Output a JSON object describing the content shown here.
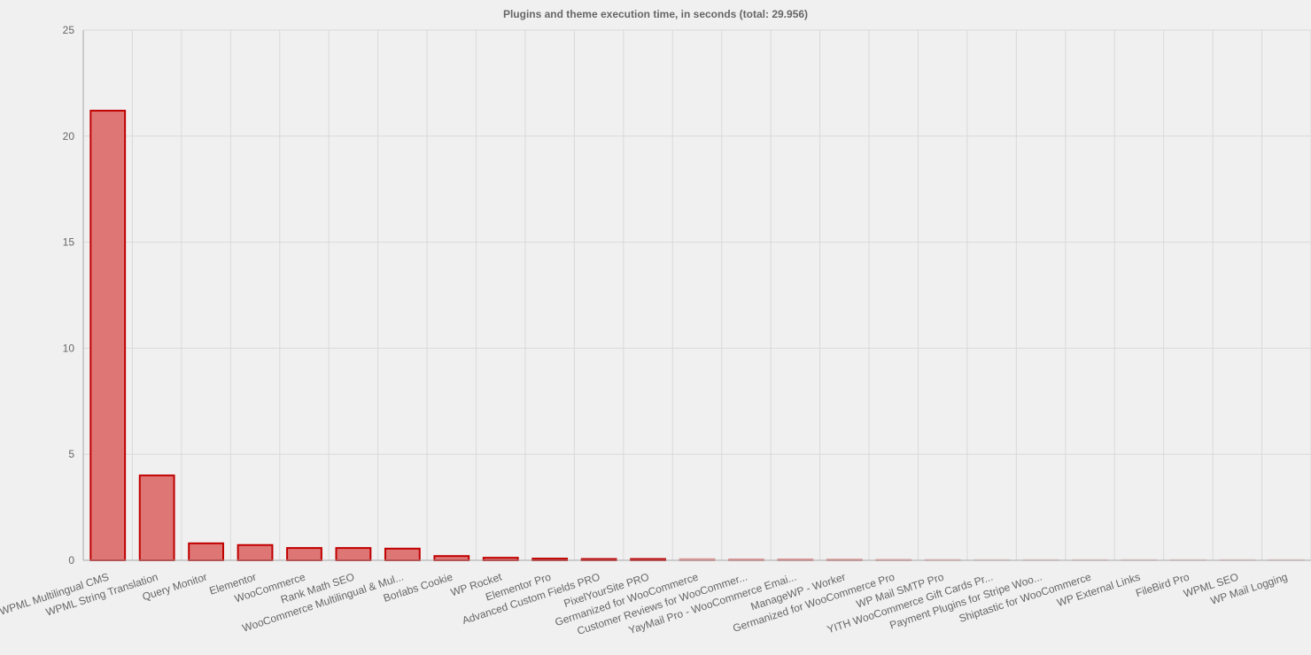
{
  "chart_data": {
    "type": "bar",
    "title": "Plugins and theme execution time, in seconds (total: 29.956)",
    "xlabel": "",
    "ylabel": "",
    "ylim": [
      0,
      25
    ],
    "yticks": [
      0,
      5,
      10,
      15,
      20,
      25
    ],
    "grid": true,
    "legend": "none",
    "colors": {
      "fill": "#df7676",
      "stroke": "#c10000",
      "grid": "#d9d9d9",
      "axis": "#a8a8a8",
      "text": "#666666"
    },
    "categories": [
      "WPML Multilingual CMS",
      "WPML String Translation",
      "Query Monitor",
      "Elementor",
      "WooCommerce",
      "Rank Math SEO",
      "WooCommerce Multilingual & Mul...",
      "Borlabs Cookie",
      "WP Rocket",
      "Elementor Pro",
      "Advanced Custom Fields PRO",
      "PixelYourSite PRO",
      "Germanized for WooCommerce",
      "Customer Reviews for WooCommer...",
      "YayMail Pro - WooCommerce Emai...",
      "ManageWP - Worker",
      "Germanized for WooCommerce Pro",
      "WP Mail SMTP Pro",
      "YITH WooCommerce Gift Cards Pr...",
      "Payment Plugins for Stripe Woo...",
      "Shiptastic for WooCommerce",
      "WP External Links",
      "FileBird Pro",
      "WPML SEO",
      "WP Mail Logging"
    ],
    "values": [
      21.2,
      4.0,
      0.8,
      0.72,
      0.58,
      0.58,
      0.55,
      0.2,
      0.12,
      0.08,
      0.06,
      0.06,
      0.05,
      0.04,
      0.04,
      0.03,
      0.02,
      0.02,
      0.02,
      0.01,
      0.01,
      0.01,
      0.01,
      0.01,
      0.01
    ],
    "bar_opacity": [
      1,
      1,
      1,
      1,
      1,
      1,
      1,
      1,
      1,
      1,
      1,
      1,
      0.4,
      0.4,
      0.4,
      0.4,
      0.3,
      0.2,
      0.1,
      0.1,
      0.1,
      0.1,
      0.1,
      0.1,
      0.1
    ]
  }
}
